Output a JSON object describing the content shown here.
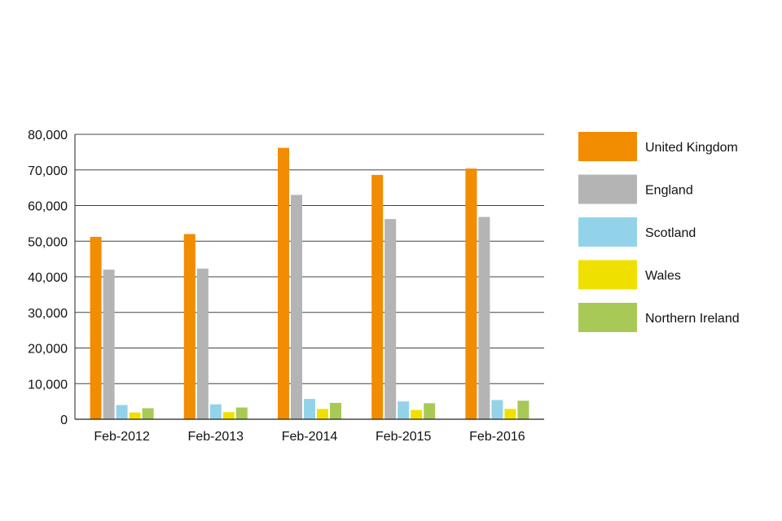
{
  "chart_data": {
    "type": "bar",
    "title": "",
    "xlabel": "",
    "ylabel": "",
    "categories": [
      "Feb-2012",
      "Feb-2013",
      "Feb-2014",
      "Feb-2015",
      "Feb-2016"
    ],
    "ylim": [
      0,
      80000
    ],
    "yticks": [
      0,
      10000,
      20000,
      30000,
      40000,
      50000,
      60000,
      70000,
      80000
    ],
    "ytick_labels": [
      "0",
      "10,000",
      "20,000",
      "30,000",
      "40,000",
      "50,000",
      "60,000",
      "70,000",
      "80,000"
    ],
    "grid": true,
    "legend_position": "right",
    "series": [
      {
        "name": "United Kingdom",
        "color": "#f28c00",
        "values": [
          51200,
          52000,
          76200,
          68600,
          70400
        ]
      },
      {
        "name": "England",
        "color": "#b4b4b4",
        "values": [
          42000,
          42300,
          63000,
          56200,
          56800
        ]
      },
      {
        "name": "Scotland",
        "color": "#93d3ea",
        "values": [
          4000,
          4200,
          5700,
          5000,
          5400
        ]
      },
      {
        "name": "Wales",
        "color": "#f0e000",
        "values": [
          1900,
          2000,
          2900,
          2600,
          2900
        ]
      },
      {
        "name": "Northern Ireland",
        "color": "#a9c956",
        "values": [
          3100,
          3300,
          4600,
          4500,
          5200
        ]
      }
    ]
  }
}
